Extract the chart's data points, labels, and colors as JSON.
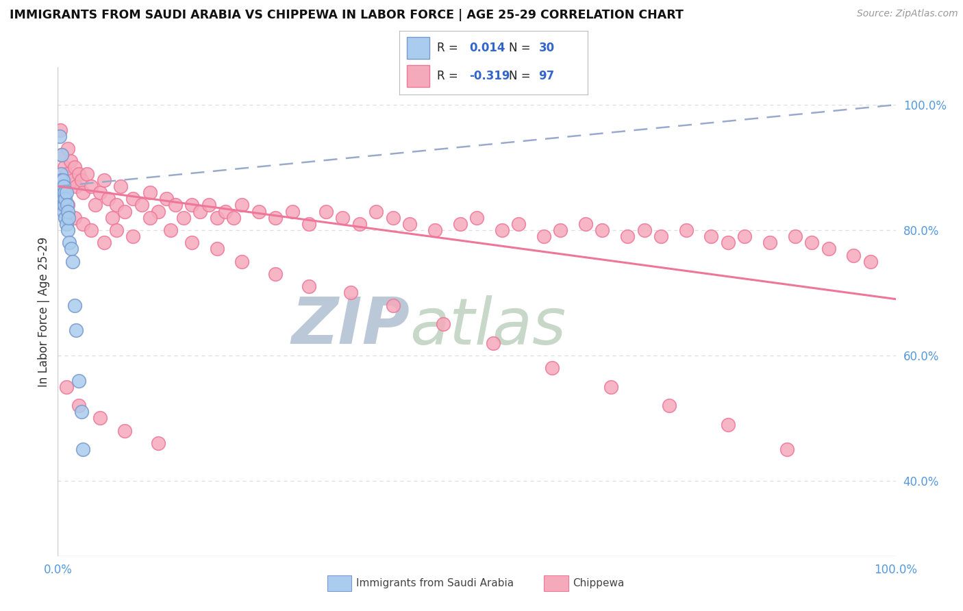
{
  "title": "IMMIGRANTS FROM SAUDI ARABIA VS CHIPPEWA IN LABOR FORCE | AGE 25-29 CORRELATION CHART",
  "source_text": "Source: ZipAtlas.com",
  "ylabel": "In Labor Force | Age 25-29",
  "xlim": [
    0.0,
    1.0
  ],
  "ylim": [
    0.28,
    1.06
  ],
  "yticks": [
    0.4,
    0.6,
    0.8,
    1.0
  ],
  "ytick_labels": [
    "40.0%",
    "60.0%",
    "80.0%",
    "100.0%"
  ],
  "xticks": [
    0.0,
    0.25,
    0.5,
    0.75,
    1.0
  ],
  "xtick_labels": [
    "0.0%",
    "",
    "",
    "",
    "100.0%"
  ],
  "legend_R1": "0.014",
  "legend_N1": "30",
  "legend_R2": "-0.319",
  "legend_N2": "97",
  "blue_color": "#AACCEE",
  "pink_color": "#F5AABB",
  "blue_edge_color": "#7799CC",
  "pink_edge_color": "#EE7799",
  "blue_line_color": "#99AACC",
  "pink_line_color": "#EE7799",
  "watermark_color": "#C5D8EC",
  "background_color": "#FFFFFF",
  "grid_color": "#DDDDDD",
  "saudi_x": [
    0.004,
    0.004,
    0.005,
    0.005,
    0.005,
    0.006,
    0.006,
    0.006,
    0.007,
    0.007,
    0.007,
    0.008,
    0.008,
    0.009,
    0.009,
    0.01,
    0.01,
    0.011,
    0.012,
    0.012,
    0.013,
    0.014,
    0.016,
    0.018,
    0.02,
    0.022,
    0.025,
    0.028,
    0.03,
    0.002
  ],
  "saudi_y": [
    0.89,
    0.88,
    0.92,
    0.87,
    0.85,
    0.88,
    0.86,
    0.84,
    0.87,
    0.85,
    0.83,
    0.86,
    0.84,
    0.85,
    0.82,
    0.86,
    0.81,
    0.84,
    0.83,
    0.8,
    0.82,
    0.78,
    0.77,
    0.75,
    0.68,
    0.64,
    0.56,
    0.51,
    0.45,
    0.95
  ],
  "chippewa_x": [
    0.003,
    0.005,
    0.008,
    0.01,
    0.012,
    0.015,
    0.018,
    0.02,
    0.022,
    0.025,
    0.028,
    0.03,
    0.035,
    0.04,
    0.045,
    0.05,
    0.055,
    0.06,
    0.065,
    0.07,
    0.075,
    0.08,
    0.09,
    0.1,
    0.11,
    0.12,
    0.13,
    0.14,
    0.15,
    0.16,
    0.17,
    0.18,
    0.19,
    0.2,
    0.21,
    0.22,
    0.24,
    0.26,
    0.28,
    0.3,
    0.32,
    0.34,
    0.36,
    0.38,
    0.4,
    0.42,
    0.45,
    0.48,
    0.5,
    0.53,
    0.55,
    0.58,
    0.6,
    0.63,
    0.65,
    0.68,
    0.7,
    0.72,
    0.75,
    0.78,
    0.8,
    0.82,
    0.85,
    0.88,
    0.9,
    0.92,
    0.95,
    0.97,
    0.006,
    0.012,
    0.02,
    0.03,
    0.04,
    0.055,
    0.07,
    0.09,
    0.11,
    0.135,
    0.16,
    0.19,
    0.22,
    0.26,
    0.3,
    0.35,
    0.4,
    0.46,
    0.52,
    0.59,
    0.66,
    0.73,
    0.8,
    0.87,
    0.01,
    0.025,
    0.05,
    0.08,
    0.12
  ],
  "chippewa_y": [
    0.96,
    0.92,
    0.9,
    0.89,
    0.93,
    0.91,
    0.88,
    0.9,
    0.87,
    0.89,
    0.88,
    0.86,
    0.89,
    0.87,
    0.84,
    0.86,
    0.88,
    0.85,
    0.82,
    0.84,
    0.87,
    0.83,
    0.85,
    0.84,
    0.86,
    0.83,
    0.85,
    0.84,
    0.82,
    0.84,
    0.83,
    0.84,
    0.82,
    0.83,
    0.82,
    0.84,
    0.83,
    0.82,
    0.83,
    0.81,
    0.83,
    0.82,
    0.81,
    0.83,
    0.82,
    0.81,
    0.8,
    0.81,
    0.82,
    0.8,
    0.81,
    0.79,
    0.8,
    0.81,
    0.8,
    0.79,
    0.8,
    0.79,
    0.8,
    0.79,
    0.78,
    0.79,
    0.78,
    0.79,
    0.78,
    0.77,
    0.76,
    0.75,
    0.87,
    0.84,
    0.82,
    0.81,
    0.8,
    0.78,
    0.8,
    0.79,
    0.82,
    0.8,
    0.78,
    0.77,
    0.75,
    0.73,
    0.71,
    0.7,
    0.68,
    0.65,
    0.62,
    0.58,
    0.55,
    0.52,
    0.49,
    0.45,
    0.55,
    0.52,
    0.5,
    0.48,
    0.46
  ],
  "saudi_trend_x0": 0.0,
  "saudi_trend_y0": 0.87,
  "saudi_trend_x1": 1.0,
  "saudi_trend_y1": 1.0,
  "chip_trend_x0": 0.0,
  "chip_trend_y0": 0.87,
  "chip_trend_x1": 1.0,
  "chip_trend_y1": 0.69
}
